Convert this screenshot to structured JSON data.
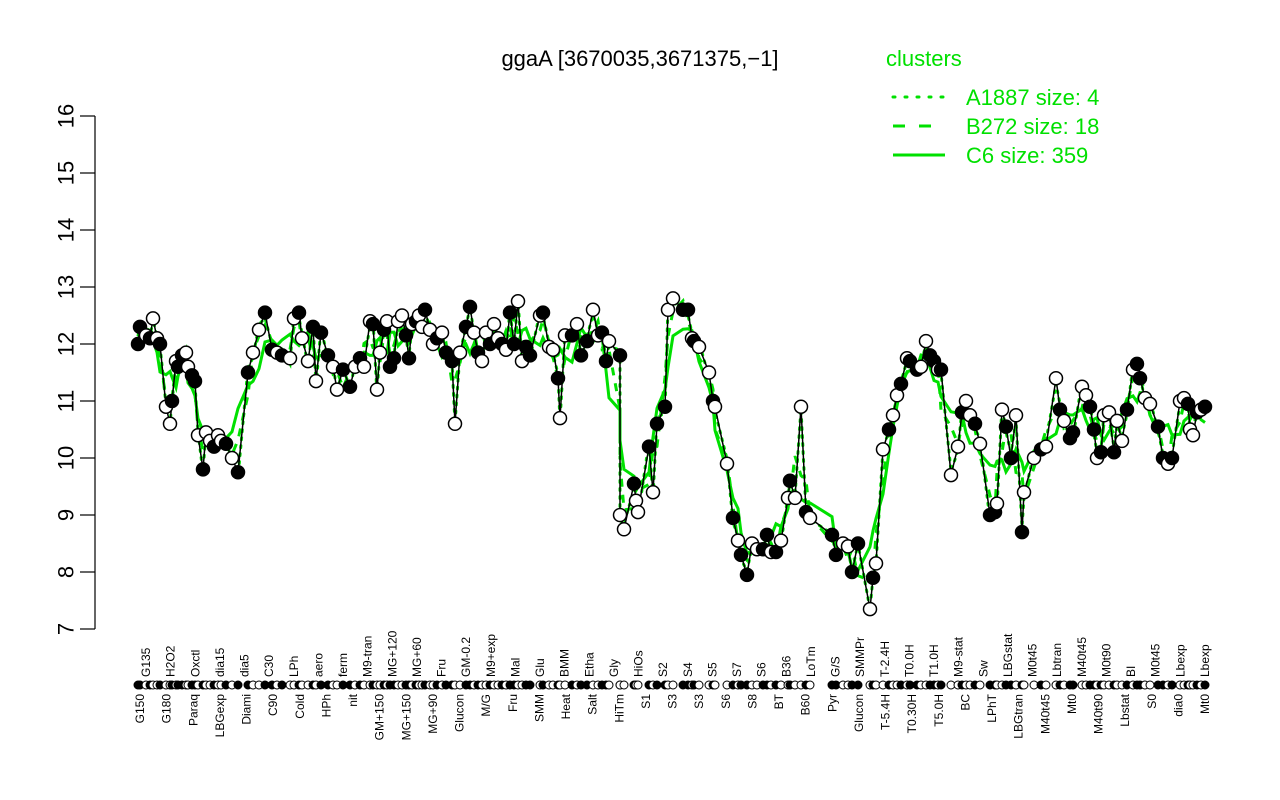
{
  "chart_data": {
    "type": "line",
    "title": "ggaA [3670035,3671375,−1]",
    "xlabel": "",
    "ylabel": "",
    "ylim": [
      7,
      16
    ],
    "yticks": [
      7,
      8,
      9,
      10,
      11,
      12,
      13,
      14,
      15,
      16
    ],
    "grid": false,
    "legend": {
      "title": "clusters",
      "position": "top-right",
      "color": "#00e000",
      "entries": [
        {
          "label": "A1887 size: 4",
          "style": "dotted"
        },
        {
          "label": "B272 size: 18",
          "style": "dashed"
        },
        {
          "label": "C6 size: 359",
          "style": "solid"
        }
      ]
    },
    "xtick_labels_top": [
      "G135",
      "H2O2",
      "Oxctl",
      "dia15",
      "dia5",
      "C30",
      "LPh",
      "aero",
      "ferm",
      "M9-tran",
      "MG+120",
      "MG+60",
      "Fru",
      "GM-0.2",
      "M9+exp",
      "Mal",
      "Glu",
      "BMM",
      "Etha",
      "Gly",
      "HiOs",
      "S2",
      "S4",
      "S5",
      "S7",
      "S6",
      "B36",
      "LoTm",
      "G/S",
      "SMMPr",
      "T-2.4H",
      "T0.0H",
      "T1.0H",
      "M9-stat",
      "Sw",
      "LBGstat",
      "M0t45",
      "Lbtran",
      "M40t45",
      "M0t90",
      "BI",
      "M0t45",
      "Lbexp",
      "Lbexp"
    ],
    "xtick_labels_bottom": [
      "G150",
      "G180",
      "Paraq",
      "LBGexp",
      "Diami",
      "C90",
      "Cold",
      "HPh",
      "nit",
      "GM+150",
      "MG+150",
      "MG+90",
      "Glucon",
      "M/G",
      "Fru",
      "SMM",
      "Heat",
      "Salt",
      "HiTm",
      "S1",
      "S3",
      "S3",
      "S6",
      "S8",
      "BT",
      "B60",
      "Pyr",
      "Glucon",
      "T-5.4H",
      "T0.30H",
      "T5.0H",
      "BC",
      "LPhT",
      "LBGtran",
      "M40t45",
      "Mt0",
      "M40t90",
      "Lbstat",
      "S0",
      "dia0",
      "Mt0"
    ],
    "series": [
      {
        "name": "expression",
        "color": "#000000",
        "points": [
          [
            138,
            12.0
          ],
          [
            140,
            12.3
          ],
          [
            146,
            12.15
          ],
          [
            150,
            12.1
          ],
          [
            153,
            12.45
          ],
          [
            157,
            12.1
          ],
          [
            160,
            12.0
          ],
          [
            166,
            10.9
          ],
          [
            170,
            10.6
          ],
          [
            172,
            11.0
          ],
          [
            176,
            11.7
          ],
          [
            178,
            11.6
          ],
          [
            182,
            11.8
          ],
          [
            186,
            11.85
          ],
          [
            188,
            11.6
          ],
          [
            192,
            11.45
          ],
          [
            195,
            11.35
          ],
          [
            198,
            10.4
          ],
          [
            203,
            9.8
          ],
          [
            206,
            10.45
          ],
          [
            210,
            10.3
          ],
          [
            214,
            10.2
          ],
          [
            218,
            10.4
          ],
          [
            221,
            10.3
          ],
          [
            226,
            10.25
          ],
          [
            232,
            10.0
          ],
          [
            238,
            9.75
          ],
          [
            248,
            11.5
          ],
          [
            253,
            11.85
          ],
          [
            259,
            12.25
          ],
          [
            265,
            12.55
          ],
          [
            272,
            11.9
          ],
          [
            277,
            11.85
          ],
          [
            282,
            11.8
          ],
          [
            290,
            11.75
          ],
          [
            294,
            12.45
          ],
          [
            299,
            12.55
          ],
          [
            302,
            12.1
          ],
          [
            308,
            11.7
          ],
          [
            313,
            12.3
          ],
          [
            316,
            11.35
          ],
          [
            321,
            12.2
          ],
          [
            328,
            11.8
          ],
          [
            333,
            11.6
          ],
          [
            337,
            11.2
          ],
          [
            343,
            11.55
          ],
          [
            350,
            11.25
          ],
          [
            355,
            11.6
          ],
          [
            360,
            11.75
          ],
          [
            364,
            11.6
          ],
          [
            370,
            12.4
          ],
          [
            373,
            12.35
          ],
          [
            377,
            11.2
          ],
          [
            380,
            11.85
          ],
          [
            384,
            12.25
          ],
          [
            387,
            12.4
          ],
          [
            390,
            11.6
          ],
          [
            394,
            11.75
          ],
          [
            398,
            12.4
          ],
          [
            402,
            12.5
          ],
          [
            406,
            12.15
          ],
          [
            409,
            11.75
          ],
          [
            412,
            12.35
          ],
          [
            416,
            12.4
          ],
          [
            419,
            12.5
          ],
          [
            422,
            12.3
          ],
          [
            425,
            12.6
          ],
          [
            430,
            12.25
          ],
          [
            433,
            12.0
          ],
          [
            437,
            12.1
          ],
          [
            442,
            12.2
          ],
          [
            446,
            11.85
          ],
          [
            452,
            11.7
          ],
          [
            455,
            10.6
          ],
          [
            460,
            11.85
          ],
          [
            466,
            12.3
          ],
          [
            470,
            12.65
          ],
          [
            474,
            12.2
          ],
          [
            478,
            11.85
          ],
          [
            482,
            11.7
          ],
          [
            486,
            12.2
          ],
          [
            490,
            12.0
          ],
          [
            494,
            12.35
          ],
          [
            498,
            12.1
          ],
          [
            502,
            12.0
          ],
          [
            506,
            11.9
          ],
          [
            510,
            12.55
          ],
          [
            514,
            12.0
          ],
          [
            518,
            12.75
          ],
          [
            522,
            11.7
          ],
          [
            526,
            11.95
          ],
          [
            530,
            11.8
          ],
          [
            540,
            12.5
          ],
          [
            543,
            12.55
          ],
          [
            549,
            11.95
          ],
          [
            553,
            11.9
          ],
          [
            558,
            11.4
          ],
          [
            560,
            10.7
          ],
          [
            565,
            12.15
          ],
          [
            572,
            12.15
          ],
          [
            577,
            12.35
          ],
          [
            581,
            11.8
          ],
          [
            587,
            12.05
          ],
          [
            593,
            12.6
          ],
          [
            598,
            12.15
          ],
          [
            602,
            12.2
          ],
          [
            606,
            11.7
          ],
          [
            609,
            12.05
          ],
          [
            620,
            11.8
          ],
          [
            620,
            9.0
          ],
          [
            624,
            8.75
          ],
          [
            634,
            9.55
          ],
          [
            636,
            9.25
          ],
          [
            638,
            9.05
          ],
          [
            649,
            10.2
          ],
          [
            653,
            9.4
          ],
          [
            657,
            10.6
          ],
          [
            665,
            10.9
          ],
          [
            668,
            12.6
          ],
          [
            673,
            12.8
          ],
          [
            683,
            12.6
          ],
          [
            688,
            12.6
          ],
          [
            692,
            12.1
          ],
          [
            694,
            12.05
          ],
          [
            699,
            11.95
          ],
          [
            709,
            11.5
          ],
          [
            713,
            11.0
          ],
          [
            715,
            10.9
          ],
          [
            727,
            9.9
          ],
          [
            733,
            8.95
          ],
          [
            738,
            8.55
          ],
          [
            741,
            8.3
          ],
          [
            747,
            7.95
          ],
          [
            752,
            8.5
          ],
          [
            757,
            8.4
          ],
          [
            763,
            8.4
          ],
          [
            767,
            8.65
          ],
          [
            771,
            8.35
          ],
          [
            776,
            8.35
          ],
          [
            781,
            8.55
          ],
          [
            788,
            9.3
          ],
          [
            790,
            9.6
          ],
          [
            795,
            9.3
          ],
          [
            801,
            10.9
          ],
          [
            806,
            9.05
          ],
          [
            810,
            8.95
          ],
          [
            832,
            8.65
          ],
          [
            836,
            8.3
          ],
          [
            843,
            8.5
          ],
          [
            848,
            8.45
          ],
          [
            852,
            8.0
          ],
          [
            858,
            8.5
          ],
          [
            870,
            7.35
          ],
          [
            873,
            7.9
          ],
          [
            876,
            8.15
          ],
          [
            883,
            10.15
          ],
          [
            889,
            10.5
          ],
          [
            893,
            10.75
          ],
          [
            897,
            11.1
          ],
          [
            901,
            11.3
          ],
          [
            907,
            11.75
          ],
          [
            910,
            11.7
          ],
          [
            917,
            11.55
          ],
          [
            921,
            11.6
          ],
          [
            926,
            12.05
          ],
          [
            930,
            11.8
          ],
          [
            934,
            11.7
          ],
          [
            938,
            11.55
          ],
          [
            941,
            11.55
          ],
          [
            951,
            9.7
          ],
          [
            958,
            10.2
          ],
          [
            962,
            10.8
          ],
          [
            966,
            11.0
          ],
          [
            970,
            10.75
          ],
          [
            975,
            10.6
          ],
          [
            980,
            10.25
          ],
          [
            990,
            9.0
          ],
          [
            995,
            9.05
          ],
          [
            997,
            9.2
          ],
          [
            1002,
            10.85
          ],
          [
            1006,
            10.55
          ],
          [
            1011,
            10.0
          ],
          [
            1016,
            10.75
          ],
          [
            1022,
            8.7
          ],
          [
            1024,
            9.4
          ],
          [
            1034,
            10.0
          ],
          [
            1041,
            10.15
          ],
          [
            1046,
            10.2
          ],
          [
            1056,
            11.4
          ],
          [
            1060,
            10.85
          ],
          [
            1064,
            10.65
          ],
          [
            1070,
            10.35
          ],
          [
            1073,
            10.45
          ],
          [
            1082,
            11.25
          ],
          [
            1086,
            11.1
          ],
          [
            1090,
            10.9
          ],
          [
            1094,
            10.5
          ],
          [
            1097,
            10.0
          ],
          [
            1101,
            10.1
          ],
          [
            1104,
            10.75
          ],
          [
            1109,
            10.8
          ],
          [
            1114,
            10.1
          ],
          [
            1117,
            10.65
          ],
          [
            1122,
            10.3
          ],
          [
            1127,
            10.85
          ],
          [
            1133,
            11.55
          ],
          [
            1137,
            11.65
          ],
          [
            1140,
            11.4
          ],
          [
            1145,
            11.05
          ],
          [
            1150,
            10.95
          ],
          [
            1158,
            10.55
          ],
          [
            1163,
            10.0
          ],
          [
            1168,
            9.9
          ],
          [
            1172,
            10.0
          ],
          [
            1180,
            11.0
          ],
          [
            1184,
            11.05
          ],
          [
            1188,
            10.95
          ],
          [
            1190,
            10.5
          ],
          [
            1193,
            10.4
          ],
          [
            1197,
            10.8
          ],
          [
            1201,
            10.85
          ],
          [
            1205,
            10.9
          ]
        ]
      }
    ]
  }
}
